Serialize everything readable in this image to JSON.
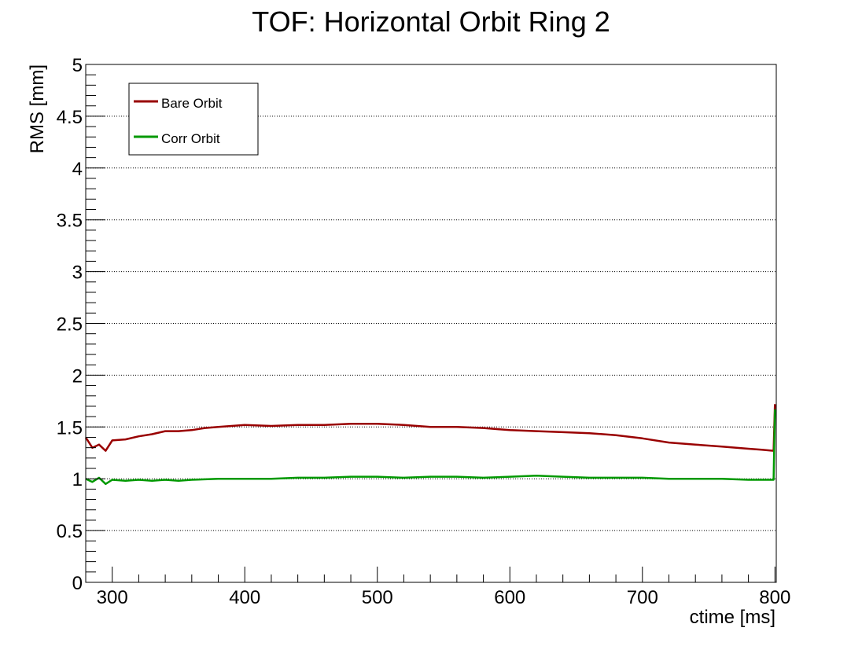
{
  "chart_data": {
    "type": "line",
    "title": "TOF: Horizontal Orbit Ring 2",
    "xlabel": "ctime [ms]",
    "ylabel": "RMS [mm]",
    "xlim": [
      280,
      801
    ],
    "ylim": [
      0,
      5
    ],
    "x_ticks": [
      300,
      400,
      500,
      600,
      700,
      800
    ],
    "x_tick_labels": [
      "300",
      "400",
      "500",
      "600",
      "700",
      "800"
    ],
    "y_ticks": [
      0,
      0.5,
      1,
      1.5,
      2,
      2.5,
      3,
      3.5,
      4,
      4.5,
      5
    ],
    "y_tick_labels": [
      "0",
      "0.5",
      "1",
      "1.5",
      "2",
      "2.5",
      "3",
      "3.5",
      "4",
      "4.5",
      "5"
    ],
    "grid": "horizontal dotted",
    "legend_position": "top-left",
    "series": [
      {
        "name": "Bare Orbit",
        "color": "#990000",
        "x": [
          280,
          285,
          290,
          295,
          300,
          310,
          320,
          330,
          340,
          350,
          360,
          370,
          380,
          390,
          400,
          420,
          440,
          460,
          480,
          500,
          520,
          540,
          560,
          580,
          600,
          620,
          640,
          660,
          680,
          700,
          720,
          740,
          760,
          780,
          790,
          799,
          800
        ],
        "y": [
          1.4,
          1.3,
          1.33,
          1.27,
          1.37,
          1.38,
          1.41,
          1.43,
          1.46,
          1.46,
          1.47,
          1.49,
          1.5,
          1.51,
          1.52,
          1.51,
          1.52,
          1.52,
          1.53,
          1.53,
          1.52,
          1.5,
          1.5,
          1.49,
          1.47,
          1.46,
          1.45,
          1.44,
          1.42,
          1.39,
          1.35,
          1.33,
          1.31,
          1.29,
          1.28,
          1.27,
          1.72
        ]
      },
      {
        "name": "Corr Orbit",
        "color": "#009900",
        "x": [
          280,
          285,
          290,
          295,
          300,
          310,
          320,
          330,
          340,
          350,
          360,
          380,
          400,
          420,
          440,
          460,
          480,
          500,
          520,
          540,
          560,
          580,
          600,
          620,
          640,
          660,
          680,
          700,
          720,
          740,
          760,
          780,
          790,
          799,
          800
        ],
        "y": [
          1.0,
          0.97,
          1.01,
          0.95,
          0.99,
          0.98,
          0.99,
          0.98,
          0.99,
          0.98,
          0.99,
          1.0,
          1.0,
          1.0,
          1.01,
          1.01,
          1.02,
          1.02,
          1.01,
          1.02,
          1.02,
          1.01,
          1.02,
          1.03,
          1.02,
          1.01,
          1.01,
          1.01,
          1.0,
          1.0,
          1.0,
          0.99,
          0.99,
          0.99,
          1.67
        ]
      }
    ]
  }
}
